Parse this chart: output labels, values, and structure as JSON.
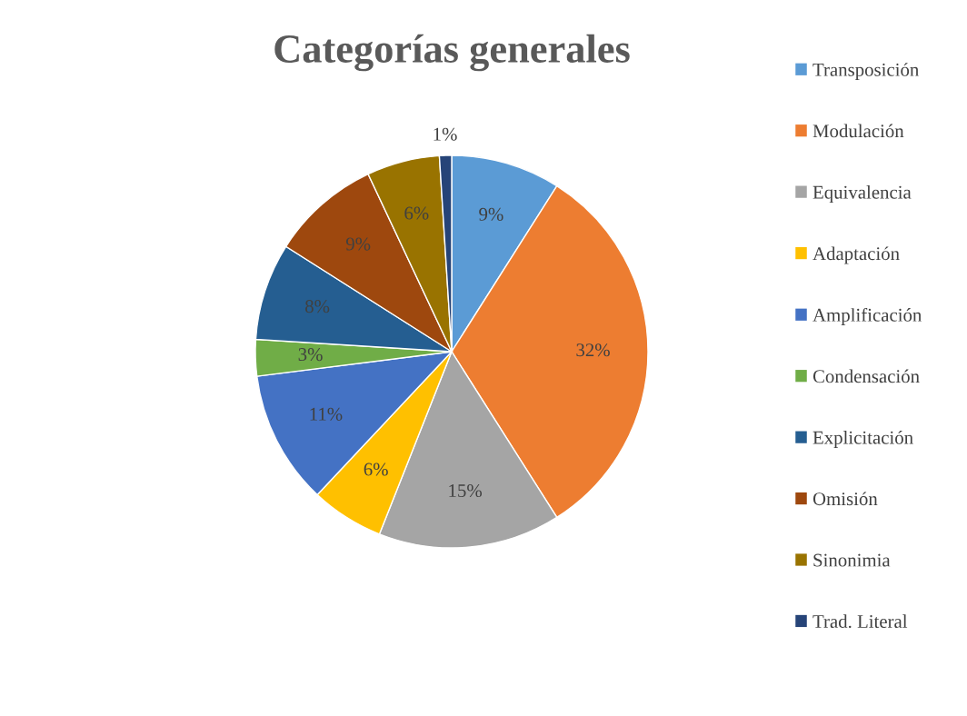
{
  "chart_data": {
    "type": "pie",
    "title": "Categorías generales",
    "categories": [
      "Transposición",
      "Modulación",
      "Equivalencia",
      "Adaptación",
      "Amplificación",
      "Condensación",
      "Explicitación",
      "Omisión",
      "Sinonimia",
      "Trad. Literal"
    ],
    "values": [
      9,
      32,
      15,
      6,
      11,
      3,
      8,
      9,
      6,
      1
    ],
    "colors": [
      "#5b9bd5",
      "#ed7d31",
      "#a5a5a5",
      "#ffc000",
      "#4472c4",
      "#70ad47",
      "#255e91",
      "#9e480e",
      "#997300",
      "#264478"
    ],
    "value_labels": [
      "9%",
      "32%",
      "15%",
      "6%",
      "11%",
      "3%",
      "8%",
      "9%",
      "6%",
      "1%"
    ],
    "legend": "right"
  }
}
